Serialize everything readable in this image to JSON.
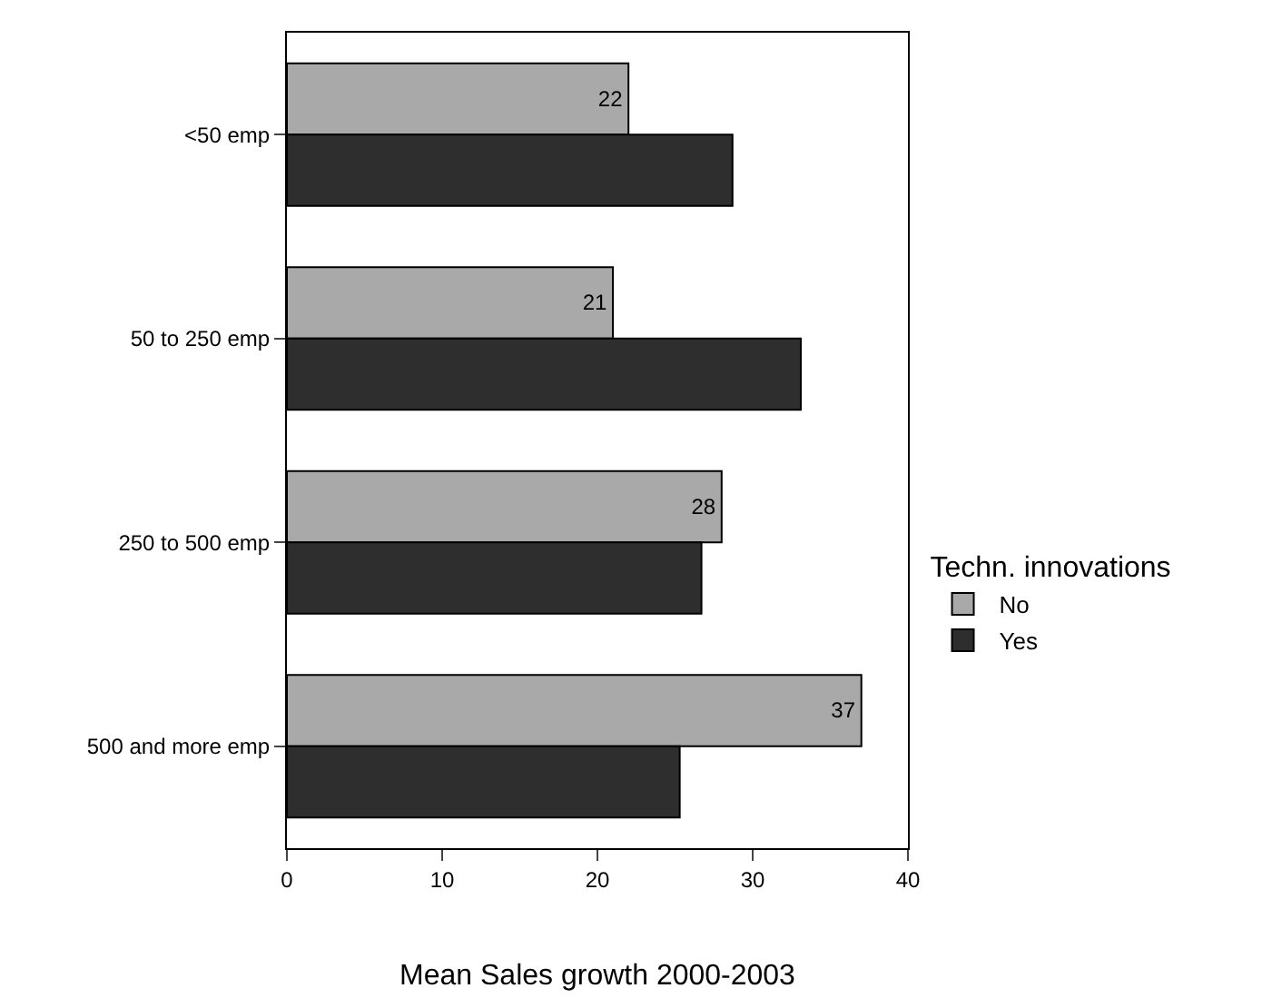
{
  "chart_data": {
    "type": "bar",
    "orientation": "horizontal",
    "categories": [
      "<50 emp",
      "50 to 250 emp",
      "250 to 500 emp",
      "500 and more emp"
    ],
    "series": [
      {
        "name": "No",
        "color": "#a9a9a9",
        "values": [
          22,
          21,
          28,
          37
        ],
        "value_labels": [
          "22",
          "21",
          "28",
          "37"
        ]
      },
      {
        "name": "Yes",
        "color": "#2e2e2e",
        "values": [
          28.7,
          33.1,
          26.7,
          25.3
        ]
      }
    ],
    "xlabel": "Mean Sales growth 2000-2003",
    "legend_title": "Techn. innovations",
    "xlim": [
      0,
      40
    ],
    "xticks": [
      0,
      10,
      20,
      30,
      40
    ],
    "legend": "right"
  }
}
